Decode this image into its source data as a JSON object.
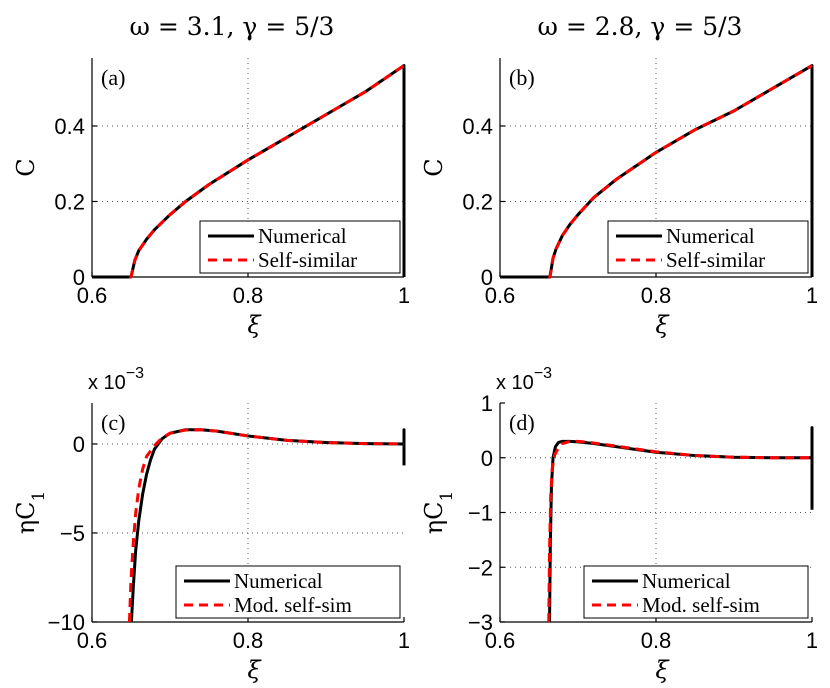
{
  "column_titles": [
    "ω = 3.1, γ = 5/3",
    "ω = 2.8, γ = 5/3"
  ],
  "colors": {
    "numerical": "#000000",
    "self_similar": "#ff0000"
  },
  "chart_data": [
    {
      "panel": "(a)",
      "type": "line",
      "xlabel": "ξ",
      "ylabel": "C",
      "ylabel_sub": "",
      "xlim": [
        0.6,
        1.0
      ],
      "ylim": [
        0,
        0.58
      ],
      "xticks": [
        0.6,
        0.8,
        1.0
      ],
      "xtick_labels": [
        "0.6",
        "0.8",
        "1"
      ],
      "yticks": [
        0,
        0.2,
        0.4
      ],
      "ytick_labels": [
        "0",
        "0.2",
        "0.4"
      ],
      "exponent_label": "",
      "grid": true,
      "legend_position": "bottom-right",
      "series": [
        {
          "name": "Numerical",
          "style": "solid",
          "x": [
            0.6,
            0.648,
            0.65,
            0.655,
            0.66,
            0.67,
            0.68,
            0.7,
            0.72,
            0.75,
            0.8,
            0.85,
            0.9,
            0.95,
            1.0,
            1.0
          ],
          "y": [
            0,
            0,
            0.0,
            0.045,
            0.07,
            0.1,
            0.125,
            0.165,
            0.2,
            0.245,
            0.31,
            0.37,
            0.43,
            0.49,
            0.56,
            0
          ]
        },
        {
          "name": "Self-similar",
          "style": "dashed",
          "x": [
            0.648,
            0.65,
            0.655,
            0.66,
            0.67,
            0.68,
            0.7,
            0.72,
            0.75,
            0.8,
            0.85,
            0.9,
            0.95,
            1.0
          ],
          "y": [
            0,
            0.0,
            0.045,
            0.07,
            0.1,
            0.125,
            0.165,
            0.2,
            0.245,
            0.31,
            0.37,
            0.43,
            0.49,
            0.56
          ]
        }
      ]
    },
    {
      "panel": "(b)",
      "type": "line",
      "xlabel": "ξ",
      "ylabel": "C",
      "ylabel_sub": "",
      "xlim": [
        0.6,
        1.0
      ],
      "ylim": [
        0,
        0.58
      ],
      "xticks": [
        0.6,
        0.8,
        1.0
      ],
      "xtick_labels": [
        "0.6",
        "0.8",
        "1"
      ],
      "yticks": [
        0,
        0.2,
        0.4
      ],
      "ytick_labels": [
        "0",
        "0.2",
        "0.4"
      ],
      "exponent_label": "",
      "grid": true,
      "legend_position": "bottom-right",
      "series": [
        {
          "name": "Numerical",
          "style": "solid",
          "x": [
            0.6,
            0.662,
            0.664,
            0.668,
            0.672,
            0.68,
            0.69,
            0.7,
            0.72,
            0.75,
            0.8,
            0.85,
            0.9,
            0.95,
            1.0,
            1.0
          ],
          "y": [
            0,
            0,
            0.0,
            0.05,
            0.075,
            0.11,
            0.14,
            0.165,
            0.21,
            0.26,
            0.33,
            0.39,
            0.44,
            0.5,
            0.56,
            0
          ]
        },
        {
          "name": "Self-similar",
          "style": "dashed",
          "x": [
            0.662,
            0.664,
            0.668,
            0.672,
            0.68,
            0.69,
            0.7,
            0.72,
            0.75,
            0.8,
            0.85,
            0.9,
            0.95,
            1.0
          ],
          "y": [
            0,
            0.0,
            0.05,
            0.075,
            0.11,
            0.14,
            0.165,
            0.21,
            0.26,
            0.33,
            0.39,
            0.44,
            0.5,
            0.56
          ]
        }
      ]
    },
    {
      "panel": "(c)",
      "type": "line",
      "xlabel": "ξ",
      "ylabel": "ηC",
      "ylabel_sub": "1",
      "xlim": [
        0.6,
        1.0
      ],
      "ylim": [
        -10,
        2.3
      ],
      "xticks": [
        0.6,
        0.8,
        1.0
      ],
      "xtick_labels": [
        "0.6",
        "0.8",
        "1"
      ],
      "yticks": [
        -10,
        -5,
        0
      ],
      "ytick_labels": [
        "−10",
        "−5",
        "0"
      ],
      "exponent_label": "x 10",
      "exponent_power": "−3",
      "grid": true,
      "legend_position": "bottom-right",
      "series": [
        {
          "name": "Numerical",
          "style": "solid",
          "x": [
            0.6505,
            0.653,
            0.656,
            0.66,
            0.665,
            0.67,
            0.675,
            0.68,
            0.69,
            0.7,
            0.72,
            0.74,
            0.76,
            0.8,
            0.85,
            0.9,
            0.95,
            1.0,
            1.0,
            1.0
          ],
          "y": [
            -10,
            -8.0,
            -6.0,
            -4.3,
            -2.8,
            -1.7,
            -0.9,
            -0.3,
            0.3,
            0.6,
            0.8,
            0.8,
            0.72,
            0.45,
            0.2,
            0.08,
            0.02,
            0.0,
            0.8,
            -1.2
          ]
        },
        {
          "name": "Mod. self-sim",
          "style": "dashed",
          "x": [
            0.648,
            0.65,
            0.653,
            0.656,
            0.66,
            0.665,
            0.67,
            0.68,
            0.69,
            0.7,
            0.72,
            0.74,
            0.76,
            0.8,
            0.85,
            0.9,
            0.95,
            1.0
          ],
          "y": [
            -10,
            -7.6,
            -5.5,
            -3.9,
            -2.5,
            -1.4,
            -0.7,
            -0.1,
            0.35,
            0.6,
            0.78,
            0.8,
            0.72,
            0.45,
            0.2,
            0.08,
            0.02,
            0.0
          ]
        }
      ]
    },
    {
      "panel": "(d)",
      "type": "line",
      "xlabel": "ξ",
      "ylabel": "ηC",
      "ylabel_sub": "1",
      "xlim": [
        0.6,
        1.0
      ],
      "ylim": [
        -3,
        1
      ],
      "xticks": [
        0.6,
        0.8,
        1.0
      ],
      "xtick_labels": [
        "0.6",
        "0.8",
        "1"
      ],
      "yticks": [
        -3,
        -2,
        -1,
        0,
        1
      ],
      "ytick_labels": [
        "−3",
        "−2",
        "−1",
        "0",
        "1"
      ],
      "exponent_label": "x 10",
      "exponent_power": "−3",
      "grid": true,
      "legend_position": "bottom-right",
      "series": [
        {
          "name": "Numerical",
          "style": "solid",
          "x": [
            0.6635,
            0.6645,
            0.666,
            0.668,
            0.671,
            0.675,
            0.68,
            0.69,
            0.7,
            0.72,
            0.75,
            0.8,
            0.85,
            0.9,
            0.95,
            1.0,
            1.0,
            1.0
          ],
          "y": [
            -3,
            -1.6,
            -0.5,
            0.0,
            0.2,
            0.28,
            0.3,
            0.3,
            0.29,
            0.26,
            0.2,
            0.1,
            0.04,
            0.01,
            0.0,
            0.0,
            0.55,
            -0.95
          ]
        },
        {
          "name": "Mod. self-sim",
          "style": "dashed",
          "x": [
            0.6625,
            0.6635,
            0.665,
            0.667,
            0.67,
            0.675,
            0.68,
            0.69,
            0.7,
            0.72,
            0.75,
            0.8,
            0.85,
            0.9,
            0.95,
            1.0
          ],
          "y": [
            -3,
            -1.7,
            -0.7,
            -0.2,
            0.05,
            0.18,
            0.26,
            0.3,
            0.3,
            0.27,
            0.21,
            0.11,
            0.04,
            0.01,
            0.0,
            0.0
          ]
        }
      ]
    }
  ]
}
